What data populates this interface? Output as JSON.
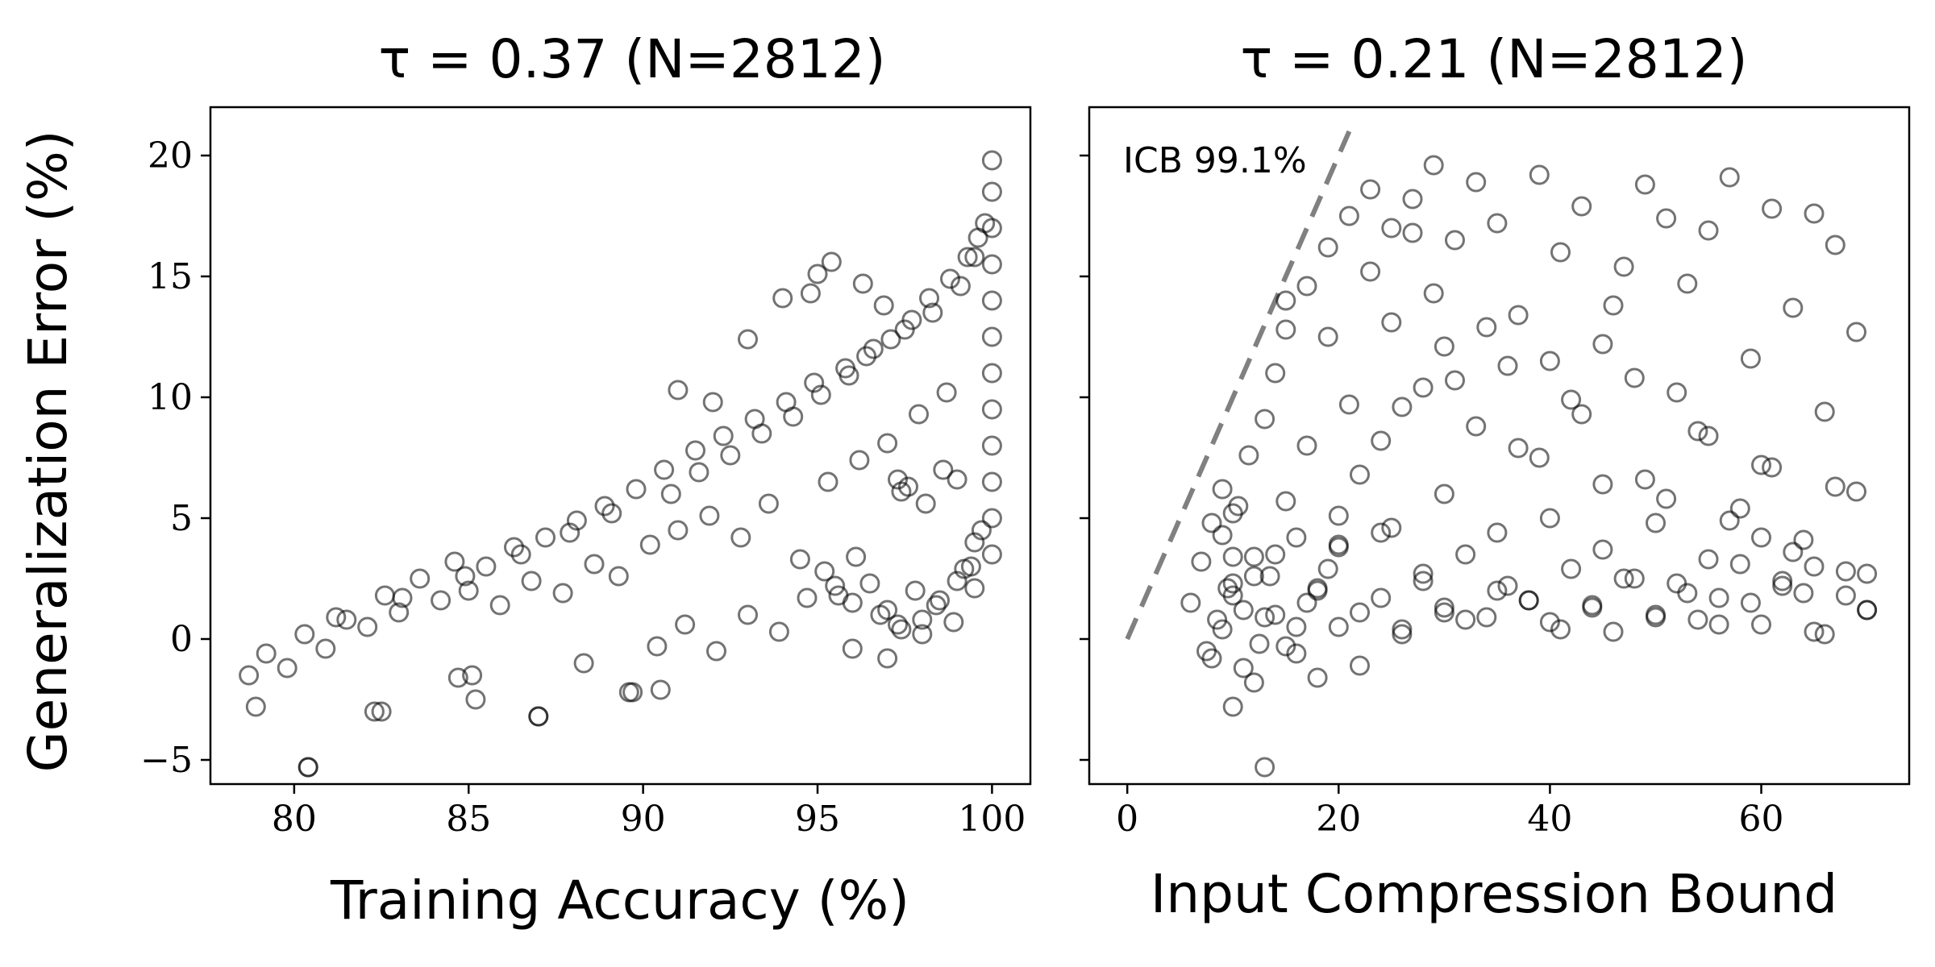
{
  "chart_data": [
    {
      "type": "scatter",
      "title": "τ = 0.37 (N=2812)",
      "xlabel": "Training Accuracy (%)",
      "ylabel": "Generalization Error (%)",
      "xlim": [
        77.6,
        101.1
      ],
      "ylim": [
        -6,
        22
      ],
      "xticks": [
        80,
        85,
        90,
        95,
        100
      ],
      "xtick_labels": [
        "80",
        "85",
        "90",
        "95",
        "100"
      ],
      "yticks": [
        -5,
        0,
        5,
        10,
        15,
        20
      ],
      "ytick_labels": [
        "−5",
        "0",
        "5",
        "10",
        "15",
        "20"
      ],
      "marker": "open circle",
      "marker_color": "#000000",
      "grid": false,
      "n_points": 2812,
      "series": [
        {
          "values_note": "representative sample",
          "x": [
            78.7,
            78.9,
            79.2,
            79.8,
            80.3,
            80.9,
            81.5,
            82.1,
            82.6,
            83.0,
            83.6,
            84.2,
            84.6,
            85.0,
            85.5,
            85.9,
            86.3,
            86.8,
            87.2,
            87.7,
            88.1,
            88.6,
            88.9,
            89.3,
            89.8,
            90.2,
            90.6,
            91.0,
            91.5,
            91.9,
            92.3,
            92.8,
            93.2,
            93.6,
            94.1,
            94.5,
            94.9,
            95.3,
            95.8,
            96.2,
            96.6,
            97.0,
            97.5,
            97.9,
            98.3,
            98.7,
            99.1,
            99.5,
            99.8,
            100.0,
            100.0,
            100.0,
            100.0,
            100.0,
            100.0,
            100.0,
            100.0,
            100.0,
            100.0,
            100.0,
            100.0,
            80.4,
            82.3,
            84.7,
            85.2,
            87.0,
            88.3,
            89.6,
            90.4,
            91.2,
            92.1,
            93.0,
            93.9,
            94.7,
            95.5,
            96.0,
            96.8,
            97.4,
            98.0,
            98.5,
            99.0,
            99.4,
            99.7,
            81.2,
            83.1,
            84.9,
            86.5,
            87.9,
            89.1,
            90.8,
            91.6,
            92.5,
            93.4,
            94.3,
            95.1,
            95.9,
            96.4,
            97.1,
            97.7,
            98.2,
            98.8,
            99.3,
            99.6,
            95.2,
            95.6,
            96.1,
            96.5,
            97.0,
            97.3,
            97.8,
            98.4,
            98.9,
            99.2,
            94.8,
            95.0,
            95.4,
            96.3,
            96.9,
            97.6,
            98.1,
            98.6,
            99.0,
            99.5,
            80.4,
            87.0,
            82.5,
            89.7,
            85.1,
            90.5,
            96.0,
            97.3,
            97.4,
            99.5,
            91.0,
            92.0,
            93.0,
            94.0,
            98.0,
            97.0
          ],
          "y": [
            -1.5,
            -2.8,
            -0.6,
            -1.2,
            0.2,
            -0.4,
            0.8,
            0.5,
            1.8,
            1.1,
            2.5,
            1.6,
            3.2,
            2.0,
            3.0,
            1.4,
            3.8,
            2.4,
            4.2,
            1.9,
            4.9,
            3.1,
            5.5,
            2.6,
            6.2,
            3.9,
            7.0,
            4.5,
            7.8,
            5.1,
            8.4,
            4.2,
            9.1,
            5.6,
            9.8,
            3.3,
            10.6,
            6.5,
            11.2,
            7.4,
            12.0,
            8.1,
            12.8,
            9.3,
            13.5,
            10.2,
            14.6,
            15.8,
            17.2,
            19.8,
            18.5,
            17.0,
            15.5,
            14.0,
            12.5,
            11.0,
            9.5,
            8.0,
            6.5,
            5.0,
            3.5,
            -5.3,
            -3.0,
            -1.6,
            -2.5,
            -3.2,
            -1.0,
            -2.2,
            -0.3,
            0.6,
            -0.5,
            1.0,
            0.3,
            1.7,
            2.2,
            1.5,
            1.0,
            0.4,
            0.8,
            1.6,
            2.4,
            3.0,
            4.5,
            0.9,
            1.7,
            2.6,
            3.5,
            4.4,
            5.2,
            6.0,
            6.9,
            7.6,
            8.5,
            9.2,
            10.1,
            10.9,
            11.7,
            12.4,
            13.2,
            14.1,
            14.9,
            15.8,
            16.6,
            2.8,
            1.8,
            3.4,
            2.3,
            1.2,
            0.6,
            2.0,
            1.4,
            0.7,
            2.9,
            14.3,
            15.1,
            15.6,
            14.7,
            13.8,
            6.3,
            5.6,
            7.0,
            6.6,
            2.1,
            -5.3,
            -3.2,
            -3.0,
            -2.2,
            -1.5,
            -2.1,
            -0.4,
            6.6,
            6.1,
            4.0,
            10.3,
            9.8,
            12.4,
            14.1,
            0.2,
            -0.8
          ]
        }
      ]
    },
    {
      "type": "scatter",
      "title": "τ = 0.21 (N=2812)",
      "xlabel": "Input Compression Bound",
      "ylabel": "",
      "xlim": [
        -3.6,
        74.0
      ],
      "ylim": [
        -6,
        22
      ],
      "xticks": [
        0,
        20,
        40,
        60
      ],
      "xtick_labels": [
        "0",
        "20",
        "40",
        "60"
      ],
      "yticks": [
        -5,
        0,
        5,
        10,
        15,
        20
      ],
      "ytick_labels": [
        "",
        "",
        "",
        "",
        "",
        ""
      ],
      "marker": "open circle",
      "marker_color": "#000000",
      "grid": false,
      "n_points": 2812,
      "annotation": "ICB 99.1%",
      "icb_line": {
        "x": [
          0,
          21
        ],
        "y": [
          0,
          21
        ],
        "style": "dashed",
        "color": "#808080"
      },
      "series": [
        {
          "values_note": "representative sample",
          "x": [
            6,
            7,
            7.5,
            8,
            8.5,
            9,
            9.5,
            10,
            10.5,
            11,
            11.5,
            12,
            12.5,
            13,
            13.5,
            14,
            15,
            16,
            17,
            18,
            19,
            20,
            21,
            22,
            23,
            24,
            25,
            26,
            27,
            28,
            29,
            30,
            31,
            32,
            33,
            34,
            35,
            36,
            37,
            38,
            39,
            40,
            41,
            42,
            43,
            44,
            45,
            46,
            47,
            48,
            49,
            50,
            51,
            52,
            53,
            54,
            55,
            56,
            57,
            58,
            59,
            60,
            61,
            62,
            63,
            64,
            65,
            66,
            67,
            68,
            69,
            70,
            8,
            9,
            10,
            11,
            12,
            13,
            14,
            15,
            16,
            17,
            18,
            19,
            20,
            22,
            24,
            26,
            28,
            30,
            33,
            36,
            39,
            42,
            45,
            48,
            51,
            54,
            57,
            60,
            63,
            66,
            69,
            10,
            12,
            14,
            16,
            18,
            20,
            22,
            24,
            26,
            28,
            30,
            32,
            35,
            38,
            41,
            44,
            47,
            50,
            53,
            56,
            59,
            62,
            65,
            68,
            70,
            9,
            10,
            13,
            15,
            17,
            19,
            21,
            23,
            25,
            27,
            29,
            31,
            34,
            37,
            40,
            43,
            46,
            49,
            52,
            55,
            58,
            61,
            64,
            67,
            10,
            15,
            20,
            25,
            30,
            35,
            40,
            45,
            50,
            55,
            60,
            65,
            70
          ],
          "y": [
            1.5,
            3.2,
            -0.5,
            4.8,
            0.8,
            6.2,
            2.1,
            -2.8,
            5.5,
            1.2,
            7.6,
            3.4,
            -0.2,
            9.1,
            2.6,
            11.0,
            12.8,
            0.5,
            14.6,
            2.0,
            16.2,
            3.8,
            17.5,
            1.1,
            18.6,
            4.4,
            17.0,
            0.4,
            18.2,
            2.7,
            19.6,
            1.3,
            16.5,
            3.5,
            18.9,
            0.9,
            17.2,
            2.2,
            13.4,
            1.6,
            19.2,
            0.7,
            16.0,
            2.9,
            17.9,
            1.4,
            12.2,
            0.3,
            15.4,
            2.5,
            18.8,
            1.0,
            17.4,
            2.3,
            14.7,
            0.8,
            16.9,
            1.7,
            19.1,
            3.1,
            11.6,
            0.6,
            17.8,
            2.4,
            13.7,
            1.9,
            17.6,
            0.2,
            16.3,
            2.8,
            12.7,
            1.2,
            -0.8,
            0.4,
            1.8,
            -1.2,
            2.6,
            0.9,
            3.5,
            -0.3,
            4.2,
            1.5,
            -1.6,
            2.9,
            5.1,
            6.8,
            8.2,
            9.6,
            10.4,
            12.1,
            8.8,
            11.3,
            7.5,
            9.9,
            6.4,
            10.8,
            5.8,
            8.6,
            4.9,
            7.2,
            3.6,
            9.4,
            6.1,
            2.3,
            -1.8,
            1.0,
            -0.6,
            2.1,
            0.5,
            -1.1,
            1.7,
            0.2,
            2.4,
            1.1,
            0.8,
            2.0,
            1.6,
            0.4,
            1.3,
            2.5,
            0.9,
            1.9,
            0.6,
            1.5,
            2.2,
            0.3,
            1.8,
            1.2,
            4.3,
            5.2,
            -5.3,
            14.0,
            8.0,
            12.5,
            9.7,
            15.2,
            13.1,
            16.8,
            14.3,
            10.7,
            12.9,
            7.9,
            11.5,
            9.3,
            13.8,
            6.6,
            10.2,
            8.4,
            5.4,
            7.1,
            4.1,
            6.3,
            3.4,
            5.7,
            3.9,
            4.6,
            6.0,
            4.4,
            5.0,
            3.7,
            4.8,
            3.3,
            4.2,
            3.0,
            2.7
          ]
        }
      ]
    }
  ]
}
